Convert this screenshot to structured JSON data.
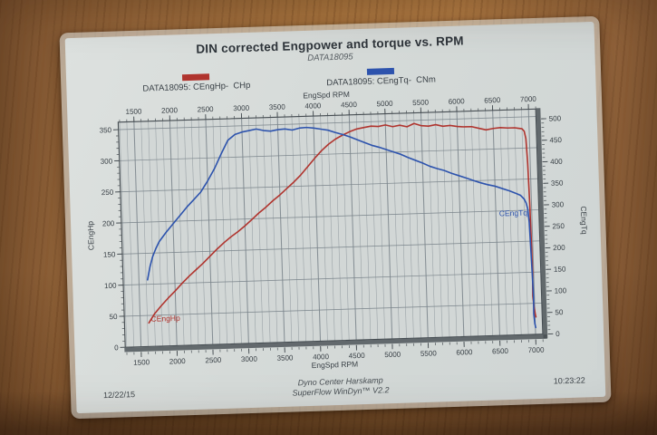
{
  "sheet": {
    "footer": {
      "date": "12/22/15",
      "center_line1": "Dyno Center Harskamp",
      "center_line2": "SuperFlow WinDyn™ V2.2",
      "time": "10:23:22"
    }
  },
  "colors": {
    "power": "#b0342e",
    "torque": "#2d53ad",
    "grid": "#79838a",
    "frame": "#474e53",
    "text": "#3a4147",
    "plot_bg": "#d2d7d6",
    "paper": "#d5dad8",
    "wood": "#a9753f"
  },
  "chart_data": {
    "type": "line",
    "title": "DIN corrected Engpower and torque vs. RPM",
    "subtitle": "DATA18095",
    "legend": [
      {
        "label": "DATA18095: CEngHp-  CHp",
        "color": "#b0342e"
      },
      {
        "label": "DATA18095: CEngTq-  CNm",
        "color": "#2d53ad"
      }
    ],
    "grid": "on",
    "x_axis": {
      "label": "EngSpd  RPM",
      "min": 1280,
      "max": 7100,
      "minor_step": 100,
      "major_step": 500,
      "ticks": [
        1500,
        2000,
        2500,
        3000,
        3500,
        4000,
        4500,
        5000,
        5500,
        6000,
        6500,
        7000
      ]
    },
    "y_left": {
      "label": "CEngHp",
      "min": 0,
      "max": 350,
      "frame_max": 362,
      "tick_step": 50,
      "minor_step": 10,
      "ticks": [
        0,
        50,
        100,
        150,
        200,
        250,
        300,
        350
      ]
    },
    "y_right": {
      "label": "CEngTq",
      "min": 0,
      "max": 500,
      "frame_max": 523,
      "tick_step": 50,
      "minor_step": 10,
      "ticks": [
        0,
        50,
        100,
        150,
        200,
        250,
        300,
        350,
        400,
        450,
        500
      ]
    },
    "series": [
      {
        "name": "CEngHp",
        "unit": "CHp",
        "axis": "left",
        "color": "#b0342e",
        "label": {
          "text": "CEngHp",
          "x": 1650,
          "y": 40,
          "anchor": "start"
        },
        "points": [
          [
            1620,
            38
          ],
          [
            1700,
            52
          ],
          [
            1800,
            65
          ],
          [
            1900,
            77
          ],
          [
            2000,
            88
          ],
          [
            2100,
            100
          ],
          [
            2200,
            111
          ],
          [
            2300,
            121
          ],
          [
            2400,
            131
          ],
          [
            2500,
            142
          ],
          [
            2600,
            153
          ],
          [
            2700,
            163
          ],
          [
            2800,
            172
          ],
          [
            2900,
            180
          ],
          [
            3000,
            189
          ],
          [
            3100,
            199
          ],
          [
            3200,
            209
          ],
          [
            3300,
            218
          ],
          [
            3400,
            228
          ],
          [
            3500,
            237
          ],
          [
            3600,
            247
          ],
          [
            3700,
            257
          ],
          [
            3800,
            268
          ],
          [
            3900,
            281
          ],
          [
            4000,
            294
          ],
          [
            4100,
            306
          ],
          [
            4200,
            316
          ],
          [
            4300,
            324
          ],
          [
            4400,
            330
          ],
          [
            4500,
            335
          ],
          [
            4600,
            339
          ],
          [
            4700,
            341
          ],
          [
            4800,
            343
          ],
          [
            4900,
            342
          ],
          [
            5000,
            344
          ],
          [
            5100,
            341
          ],
          [
            5200,
            343
          ],
          [
            5300,
            340
          ],
          [
            5400,
            345
          ],
          [
            5500,
            341
          ],
          [
            5600,
            340
          ],
          [
            5700,
            342
          ],
          [
            5800,
            339
          ],
          [
            5900,
            340
          ],
          [
            6000,
            338
          ],
          [
            6100,
            337
          ],
          [
            6200,
            337
          ],
          [
            6300,
            334
          ],
          [
            6400,
            331
          ],
          [
            6500,
            333
          ],
          [
            6600,
            334
          ],
          [
            6700,
            333
          ],
          [
            6800,
            333
          ],
          [
            6850,
            332
          ],
          [
            6900,
            331
          ],
          [
            6930,
            327
          ],
          [
            6950,
            315
          ],
          [
            6965,
            275
          ],
          [
            6975,
            210
          ],
          [
            6982,
            150
          ],
          [
            6985,
            100
          ],
          [
            6978,
            62
          ],
          [
            6990,
            45
          ],
          [
            7005,
            32
          ],
          [
            7012,
            28
          ]
        ]
      },
      {
        "name": "CEngTq",
        "unit": "CNm",
        "axis": "right",
        "color": "#2d53ad",
        "label": {
          "text": "CEngTq",
          "x": 6940,
          "y": 277,
          "anchor": "end"
        },
        "points": [
          [
            1620,
            155
          ],
          [
            1660,
            185
          ],
          [
            1700,
            208
          ],
          [
            1750,
            227
          ],
          [
            1800,
            243
          ],
          [
            1900,
            264
          ],
          [
            2000,
            283
          ],
          [
            2100,
            302
          ],
          [
            2200,
            321
          ],
          [
            2300,
            338
          ],
          [
            2400,
            355
          ],
          [
            2500,
            380
          ],
          [
            2600,
            408
          ],
          [
            2700,
            442
          ],
          [
            2800,
            473
          ],
          [
            2900,
            486
          ],
          [
            3000,
            491
          ],
          [
            3100,
            494
          ],
          [
            3200,
            497
          ],
          [
            3300,
            493
          ],
          [
            3400,
            491
          ],
          [
            3500,
            494
          ],
          [
            3600,
            495
          ],
          [
            3700,
            492
          ],
          [
            3800,
            496
          ],
          [
            3900,
            497
          ],
          [
            4000,
            495
          ],
          [
            4100,
            492
          ],
          [
            4200,
            489
          ],
          [
            4300,
            483
          ],
          [
            4400,
            478
          ],
          [
            4500,
            472
          ],
          [
            4600,
            465
          ],
          [
            4700,
            458
          ],
          [
            4800,
            451
          ],
          [
            4900,
            446
          ],
          [
            5000,
            440
          ],
          [
            5100,
            434
          ],
          [
            5200,
            428
          ],
          [
            5300,
            420
          ],
          [
            5400,
            413
          ],
          [
            5500,
            406
          ],
          [
            5600,
            398
          ],
          [
            5700,
            392
          ],
          [
            5800,
            387
          ],
          [
            5900,
            380
          ],
          [
            6000,
            374
          ],
          [
            6100,
            368
          ],
          [
            6200,
            362
          ],
          [
            6300,
            356
          ],
          [
            6400,
            351
          ],
          [
            6500,
            347
          ],
          [
            6600,
            341
          ],
          [
            6700,
            335
          ],
          [
            6800,
            328
          ],
          [
            6850,
            324
          ],
          [
            6900,
            315
          ],
          [
            6925,
            306
          ],
          [
            6945,
            292
          ],
          [
            6960,
            262
          ],
          [
            6970,
            205
          ],
          [
            6980,
            140
          ],
          [
            6988,
            85
          ],
          [
            6984,
            48
          ],
          [
            6995,
            25
          ],
          [
            7005,
            16
          ]
        ]
      }
    ]
  }
}
